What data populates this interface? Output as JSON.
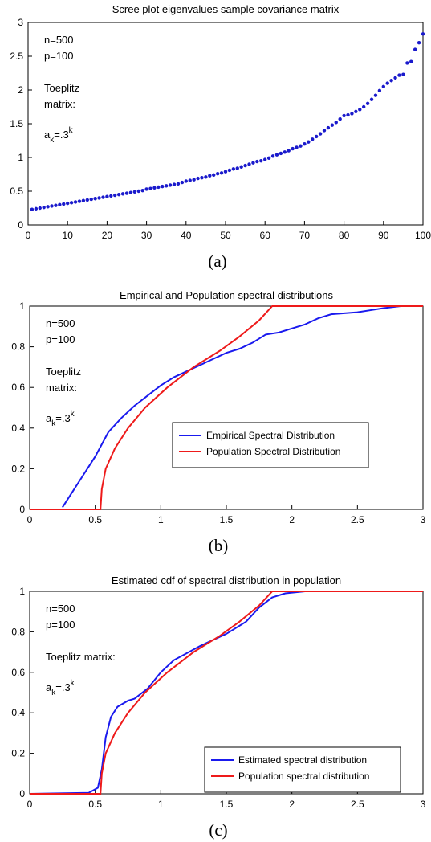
{
  "chart_data": [
    {
      "type": "scatter",
      "title": "Scree plot eigenvalues sample covariance matrix",
      "caption": "(a)",
      "annotations": [
        "n=500",
        "p=100",
        "Toeplitz",
        "matrix:"
      ],
      "formula": {
        "base": "a",
        "sub": "k",
        "eq": "=.3",
        "sup": "k"
      },
      "color": "#1a1acc",
      "x": [
        1,
        2,
        3,
        4,
        5,
        6,
        7,
        8,
        9,
        10,
        11,
        12,
        13,
        14,
        15,
        16,
        17,
        18,
        19,
        20,
        21,
        22,
        23,
        24,
        25,
        26,
        27,
        28,
        29,
        30,
        31,
        32,
        33,
        34,
        35,
        36,
        37,
        38,
        39,
        40,
        41,
        42,
        43,
        44,
        45,
        46,
        47,
        48,
        49,
        50,
        51,
        52,
        53,
        54,
        55,
        56,
        57,
        58,
        59,
        60,
        61,
        62,
        63,
        64,
        65,
        66,
        67,
        68,
        69,
        70,
        71,
        72,
        73,
        74,
        75,
        76,
        77,
        78,
        79,
        80,
        81,
        82,
        83,
        84,
        85,
        86,
        87,
        88,
        89,
        90,
        91,
        92,
        93,
        94,
        95,
        96,
        97,
        98,
        99,
        100
      ],
      "values": [
        0.23,
        0.24,
        0.25,
        0.26,
        0.27,
        0.28,
        0.29,
        0.3,
        0.31,
        0.32,
        0.33,
        0.34,
        0.35,
        0.36,
        0.37,
        0.38,
        0.39,
        0.4,
        0.41,
        0.42,
        0.43,
        0.44,
        0.45,
        0.46,
        0.47,
        0.48,
        0.49,
        0.5,
        0.51,
        0.53,
        0.54,
        0.55,
        0.56,
        0.57,
        0.58,
        0.59,
        0.6,
        0.61,
        0.63,
        0.65,
        0.66,
        0.67,
        0.69,
        0.7,
        0.71,
        0.73,
        0.74,
        0.76,
        0.77,
        0.79,
        0.81,
        0.83,
        0.84,
        0.86,
        0.88,
        0.9,
        0.92,
        0.94,
        0.95,
        0.97,
        0.99,
        1.02,
        1.04,
        1.06,
        1.08,
        1.1,
        1.13,
        1.15,
        1.17,
        1.2,
        1.23,
        1.27,
        1.31,
        1.35,
        1.4,
        1.44,
        1.48,
        1.52,
        1.57,
        1.62,
        1.63,
        1.65,
        1.68,
        1.71,
        1.75,
        1.8,
        1.86,
        1.92,
        1.99,
        2.05,
        2.1,
        2.14,
        2.18,
        2.22,
        2.23,
        2.4,
        2.42,
        2.6,
        2.7,
        2.83
      ],
      "xlim": [
        0,
        100
      ],
      "xticks": [
        0,
        10,
        20,
        30,
        40,
        50,
        60,
        70,
        80,
        90,
        100
      ],
      "ylim": [
        0,
        3
      ],
      "yticks": [
        0,
        0.5,
        1,
        1.5,
        2,
        2.5,
        3
      ]
    },
    {
      "type": "line",
      "title": "Empirical and Population spectral distributions",
      "caption": "(b)",
      "annotations": [
        "n=500",
        "p=100",
        "Toeplitz",
        "matrix:"
      ],
      "formula": {
        "base": "a",
        "sub": "k",
        "eq": "=.3",
        "sup": "k"
      },
      "legend": "lower center",
      "series": [
        {
          "name": "Empirical Spectral Distribution",
          "color": "#1a1aee",
          "x": [
            0.25,
            0.3,
            0.4,
            0.5,
            0.6,
            0.7,
            0.8,
            0.9,
            1.0,
            1.1,
            1.2,
            1.3,
            1.4,
            1.5,
            1.6,
            1.7,
            1.8,
            1.9,
            2.0,
            2.1,
            2.2,
            2.3,
            2.5,
            2.6,
            2.7,
            2.83,
            3
          ],
          "values": [
            0.01,
            0.06,
            0.16,
            0.26,
            0.38,
            0.45,
            0.51,
            0.56,
            0.61,
            0.65,
            0.68,
            0.71,
            0.74,
            0.77,
            0.79,
            0.82,
            0.86,
            0.87,
            0.89,
            0.91,
            0.94,
            0.96,
            0.97,
            0.98,
            0.99,
            1.0,
            1.0
          ]
        },
        {
          "name": "Population Spectral Distribution",
          "color": "#ee1a1a",
          "x": [
            0,
            0.54,
            0.55,
            0.58,
            0.65,
            0.75,
            0.88,
            1.05,
            1.25,
            1.45,
            1.6,
            1.75,
            1.85,
            3
          ],
          "values": [
            0,
            0,
            0.1,
            0.2,
            0.3,
            0.4,
            0.5,
            0.6,
            0.7,
            0.78,
            0.85,
            0.93,
            1.0,
            1.0
          ]
        }
      ],
      "xlim": [
        0,
        3
      ],
      "xticks": [
        0,
        0.5,
        1,
        1.5,
        2,
        2.5,
        3
      ],
      "ylim": [
        0,
        1
      ],
      "yticks": [
        0,
        0.2,
        0.4,
        0.6,
        0.8,
        1
      ]
    },
    {
      "type": "line",
      "title": "Estimated cdf of spectral distribution in population",
      "caption": "(c)",
      "annotations": [
        "n=500",
        "p=100",
        "Toeplitz matrix:"
      ],
      "formula": {
        "base": "a",
        "sub": "k",
        "eq": "=.3",
        "sup": "k"
      },
      "legend": "lower right",
      "series": [
        {
          "name": "Estimated spectral distribution",
          "color": "#1a1aee",
          "x": [
            0,
            0.45,
            0.52,
            0.55,
            0.58,
            0.62,
            0.67,
            0.75,
            0.8,
            0.9,
            1.0,
            1.1,
            1.3,
            1.5,
            1.65,
            1.75,
            1.85,
            1.95,
            2.1,
            3
          ],
          "values": [
            0,
            0.005,
            0.03,
            0.12,
            0.28,
            0.38,
            0.43,
            0.46,
            0.47,
            0.52,
            0.6,
            0.66,
            0.73,
            0.79,
            0.85,
            0.92,
            0.97,
            0.99,
            1.0,
            1.0
          ]
        },
        {
          "name": "Population spectral distribution",
          "color": "#ee1a1a",
          "x": [
            0,
            0.54,
            0.55,
            0.58,
            0.65,
            0.75,
            0.88,
            1.05,
            1.25,
            1.45,
            1.6,
            1.75,
            1.85,
            3
          ],
          "values": [
            0,
            0,
            0.1,
            0.2,
            0.3,
            0.4,
            0.5,
            0.6,
            0.7,
            0.78,
            0.85,
            0.93,
            1.0,
            1.0
          ]
        }
      ],
      "xlim": [
        0,
        3
      ],
      "xticks": [
        0,
        0.5,
        1,
        1.5,
        2,
        2.5,
        3
      ],
      "ylim": [
        0,
        1
      ],
      "yticks": [
        0,
        0.2,
        0.4,
        0.6,
        0.8,
        1
      ]
    }
  ]
}
